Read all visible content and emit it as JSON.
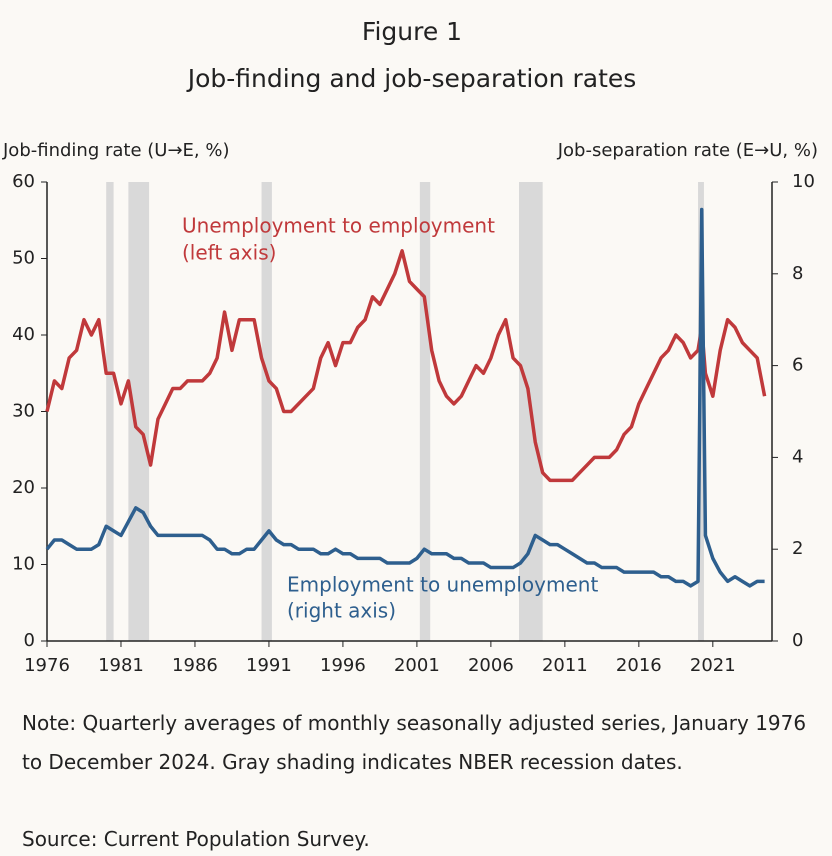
{
  "chart_data": {
    "type": "line",
    "title": "Figure 1",
    "subtitle": "Job-finding and job-separation rates",
    "y_label": "Job-finding rate (U→E, %)",
    "y2_label": "Job-separation rate (E→U, %)",
    "xlim": [
      1976,
      2025
    ],
    "xticks": [
      1976,
      1981,
      1986,
      1991,
      1996,
      2001,
      2006,
      2011,
      2016,
      2021
    ],
    "ylim": [
      0,
      60
    ],
    "yticks": [
      0,
      10,
      20,
      30,
      40,
      50,
      60
    ],
    "y2lim": [
      0,
      10
    ],
    "y2ticks": [
      0,
      2,
      4,
      6,
      8,
      10
    ],
    "recession_color": "#d9d9d9",
    "recessions": [
      [
        1980.0,
        1980.5
      ],
      [
        1981.5,
        1982.9
      ],
      [
        1990.5,
        1991.2
      ],
      [
        2001.2,
        2001.9
      ],
      [
        2007.9,
        2009.5
      ],
      [
        2020.0,
        2020.4
      ]
    ],
    "x": [
      1976.0,
      1976.5,
      1977.0,
      1977.5,
      1978.0,
      1978.5,
      1979.0,
      1979.5,
      1980.0,
      1980.5,
      1981.0,
      1981.5,
      1982.0,
      1982.5,
      1983.0,
      1983.5,
      1984.0,
      1984.5,
      1985.0,
      1985.5,
      1986.0,
      1986.5,
      1987.0,
      1987.5,
      1988.0,
      1988.5,
      1989.0,
      1989.5,
      1990.0,
      1990.5,
      1991.0,
      1991.5,
      1992.0,
      1992.5,
      1993.0,
      1993.5,
      1994.0,
      1994.5,
      1995.0,
      1995.5,
      1996.0,
      1996.5,
      1997.0,
      1997.5,
      1998.0,
      1998.5,
      1999.0,
      1999.5,
      2000.0,
      2000.5,
      2001.0,
      2001.5,
      2002.0,
      2002.5,
      2003.0,
      2003.5,
      2004.0,
      2004.5,
      2005.0,
      2005.5,
      2006.0,
      2006.5,
      2007.0,
      2007.5,
      2008.0,
      2008.5,
      2009.0,
      2009.5,
      2010.0,
      2010.5,
      2011.0,
      2011.5,
      2012.0,
      2012.5,
      2013.0,
      2013.5,
      2014.0,
      2014.5,
      2015.0,
      2015.5,
      2016.0,
      2016.5,
      2017.0,
      2017.5,
      2018.0,
      2018.5,
      2019.0,
      2019.5,
      2020.0,
      2020.25,
      2020.5,
      2021.0,
      2021.5,
      2022.0,
      2022.5,
      2023.0,
      2023.5,
      2024.0,
      2024.5
    ],
    "series": [
      {
        "name": "Unemployment to employment",
        "axis_note": "(left axis)",
        "color": "#c0393b",
        "axis": "y",
        "values": [
          30,
          34,
          33,
          37,
          38,
          42,
          40,
          42,
          35,
          35,
          31,
          34,
          28,
          27,
          23,
          29,
          31,
          33,
          33,
          34,
          34,
          34,
          35,
          37,
          43,
          38,
          42,
          42,
          42,
          37,
          34,
          33,
          30,
          30,
          31,
          32,
          33,
          37,
          39,
          36,
          39,
          39,
          41,
          42,
          45,
          44,
          46,
          48,
          51,
          47,
          46,
          45,
          38,
          34,
          32,
          31,
          32,
          34,
          36,
          35,
          37,
          40,
          42,
          37,
          36,
          33,
          26,
          22,
          21,
          21,
          21,
          21,
          22,
          23,
          24,
          24,
          24,
          25,
          27,
          28,
          31,
          33,
          35,
          37,
          38,
          40,
          39,
          37,
          38,
          41,
          35,
          32,
          38,
          42,
          41,
          39,
          38,
          37,
          32
        ]
      },
      {
        "name": "Employment to unemployment",
        "axis_note": "(right axis)",
        "color": "#2e5f8e",
        "axis": "y2",
        "values": [
          2.0,
          2.2,
          2.2,
          2.1,
          2.0,
          2.0,
          2.0,
          2.1,
          2.5,
          2.4,
          2.3,
          2.6,
          2.9,
          2.8,
          2.5,
          2.3,
          2.3,
          2.3,
          2.3,
          2.3,
          2.3,
          2.3,
          2.2,
          2.0,
          2.0,
          1.9,
          1.9,
          2.0,
          2.0,
          2.2,
          2.4,
          2.2,
          2.1,
          2.1,
          2.0,
          2.0,
          2.0,
          1.9,
          1.9,
          2.0,
          1.9,
          1.9,
          1.8,
          1.8,
          1.8,
          1.8,
          1.7,
          1.7,
          1.7,
          1.7,
          1.8,
          2.0,
          1.9,
          1.9,
          1.9,
          1.8,
          1.8,
          1.7,
          1.7,
          1.7,
          1.6,
          1.6,
          1.6,
          1.6,
          1.7,
          1.9,
          2.3,
          2.2,
          2.1,
          2.1,
          2.0,
          1.9,
          1.8,
          1.7,
          1.7,
          1.6,
          1.6,
          1.6,
          1.5,
          1.5,
          1.5,
          1.5,
          1.5,
          1.4,
          1.4,
          1.3,
          1.3,
          1.2,
          1.3,
          9.4,
          2.3,
          1.8,
          1.5,
          1.3,
          1.4,
          1.3,
          1.2,
          1.3,
          1.3
        ]
      }
    ],
    "note": "Note: Quarterly averages of monthly seasonally adjusted series, January 1976 to December 2024. Gray shading indicates NBER recession dates.",
    "source": "Source: Current Population Survey."
  }
}
